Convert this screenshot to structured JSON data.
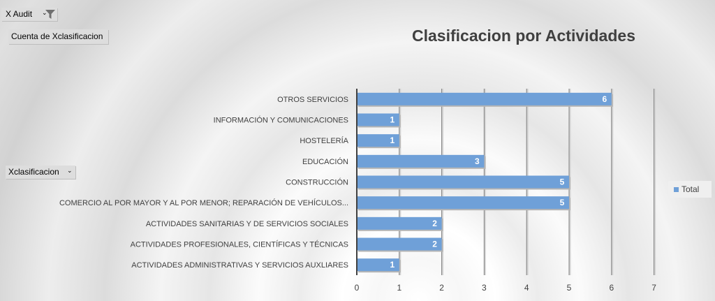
{
  "pivot": {
    "filter_label": "X Audit",
    "value_label": "Cuenta de Xclasificacion",
    "row_label": "Xclasificacion",
    "dropdown_icon": "dropdown-arrow-icon",
    "filter_icon": "funnel-icon"
  },
  "chart_data": {
    "type": "bar",
    "orientation": "horizontal",
    "title": "Clasificacion por Actividades",
    "categories": [
      "OTROS SERVICIOS",
      "INFORMACIÓN Y COMUNICACIONES",
      "HOSTELERÍA",
      "EDUCACIÓN",
      "CONSTRUCCIÓN",
      "COMERCIO AL POR MAYOR Y AL POR MENOR; REPARACIÓN DE VEHÍCULOS...",
      "ACTIVIDADES SANITARIAS Y DE SERVICIOS SOCIALES",
      "ACTIVIDADES PROFESIONALES, CIENTÍFICAS Y TÉCNICAS",
      "ACTIVIDADES ADMINISTRATIVAS Y SERVICIOS AUXLIARES"
    ],
    "series": [
      {
        "name": "Total",
        "values": [
          6,
          1,
          1,
          3,
          5,
          5,
          2,
          2,
          1
        ]
      }
    ],
    "xlim": [
      0,
      7
    ],
    "xticks": [
      "0",
      "1",
      "2",
      "3",
      "4",
      "5",
      "6",
      "7"
    ],
    "data_labels": true,
    "grid": true,
    "legend_position": "right",
    "bar_color": "#6fa0d8"
  }
}
